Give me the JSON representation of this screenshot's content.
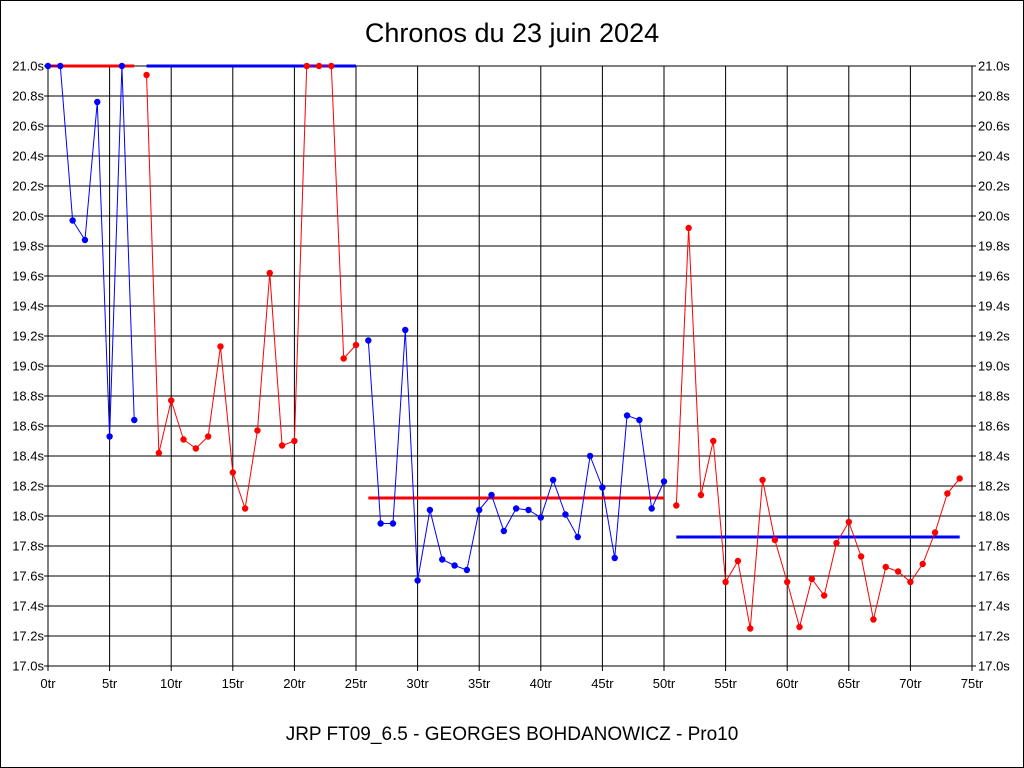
{
  "chart_data": {
    "type": "line",
    "title": "Chronos du 23 juin 2024",
    "subtitle": "JRP FT09_6.5 - GEORGES BOHDANOWICZ - Pro10",
    "xlabel": "",
    "ylabel": "",
    "xlim": [
      0,
      75
    ],
    "ylim": [
      17.0,
      21.0
    ],
    "x_tick_values": [
      0,
      5,
      10,
      15,
      20,
      25,
      30,
      35,
      40,
      45,
      50,
      55,
      60,
      65,
      70,
      75
    ],
    "x_tick_labels": [
      "0tr",
      "5tr",
      "10tr",
      "15tr",
      "20tr",
      "25tr",
      "30tr",
      "35tr",
      "40tr",
      "45tr",
      "50tr",
      "55tr",
      "60tr",
      "65tr",
      "70tr",
      "75tr"
    ],
    "y_tick_values": [
      17.0,
      17.2,
      17.4,
      17.6,
      17.8,
      18.0,
      18.2,
      18.4,
      18.6,
      18.8,
      19.0,
      19.2,
      19.4,
      19.6,
      19.8,
      20.0,
      20.2,
      20.4,
      20.6,
      20.8,
      21.0
    ],
    "y_tick_labels": [
      "17.0s",
      "17.2s",
      "17.4s",
      "17.6s",
      "17.8s",
      "18.0s",
      "18.2s",
      "18.4s",
      "18.6s",
      "18.8s",
      "19.0s",
      "19.2s",
      "19.4s",
      "19.6s",
      "19.8s",
      "20.0s",
      "20.2s",
      "20.4s",
      "20.6s",
      "20.8s",
      "21.0s"
    ],
    "grid": true,
    "colors": {
      "blue": "#0000ff",
      "red": "#ff0000",
      "grid": "#000000"
    },
    "series": [
      {
        "color": "#0000ff",
        "x": [
          0,
          1,
          2,
          3,
          4,
          5,
          6,
          7
        ],
        "y": [
          21.0,
          21.0,
          19.97,
          19.84,
          20.76,
          18.53,
          21.0,
          18.64
        ]
      },
      {
        "color": "#ff0000",
        "x": [
          8,
          9,
          10,
          11,
          12,
          13,
          14,
          15,
          16,
          17,
          18,
          19,
          20,
          21,
          22,
          23,
          24,
          25
        ],
        "y": [
          20.94,
          18.42,
          18.77,
          18.51,
          18.45,
          18.53,
          19.13,
          18.29,
          18.05,
          18.57,
          19.62,
          18.47,
          18.5,
          21.0,
          21.0,
          21.0,
          19.05,
          19.14
        ]
      },
      {
        "color": "#0000ff",
        "x": [
          26,
          27,
          28,
          29,
          30,
          31,
          32,
          33,
          34,
          35,
          36,
          37,
          38,
          39,
          40,
          41,
          42,
          43,
          44,
          45,
          46,
          47,
          48,
          49,
          50
        ],
        "y": [
          19.17,
          17.95,
          17.95,
          19.24,
          17.57,
          18.04,
          17.71,
          17.67,
          17.64,
          18.04,
          18.14,
          17.9,
          18.05,
          18.04,
          17.99,
          18.24,
          18.01,
          17.86,
          18.4,
          18.19,
          17.72,
          18.67,
          18.64,
          18.05,
          18.23
        ]
      },
      {
        "color": "#ff0000",
        "x": [
          51,
          52,
          53,
          54,
          55,
          56,
          57,
          58,
          59,
          60,
          61,
          62,
          63,
          64,
          65,
          66,
          67,
          68,
          69,
          70,
          71,
          72,
          73,
          74
        ],
        "y": [
          18.07,
          19.92,
          18.14,
          18.5,
          17.56,
          17.7,
          17.25,
          18.24,
          17.84,
          17.56,
          17.26,
          17.58,
          17.47,
          17.82,
          17.96,
          17.73,
          17.31,
          17.66,
          17.63,
          17.56,
          17.68,
          17.89,
          18.15,
          18.25
        ]
      }
    ],
    "reference_lines": [
      {
        "color": "#ff0000",
        "x": [
          0,
          7
        ],
        "y": 21.0
      },
      {
        "color": "#0000ff",
        "x": [
          8,
          25
        ],
        "y": 21.0
      },
      {
        "color": "#ff0000",
        "x": [
          26,
          50
        ],
        "y": 18.12
      },
      {
        "color": "#0000ff",
        "x": [
          51,
          74
        ],
        "y": 17.86
      }
    ]
  }
}
